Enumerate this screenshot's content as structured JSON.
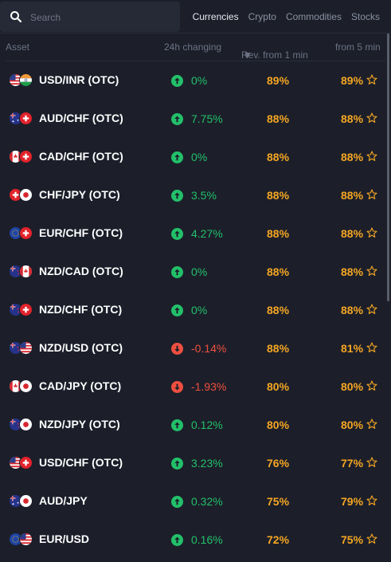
{
  "search": {
    "placeholder": "Search"
  },
  "tabs": [
    {
      "label": "Currencies",
      "active": true
    },
    {
      "label": "Crypto",
      "active": false
    },
    {
      "label": "Commodities",
      "active": false
    },
    {
      "label": "Stocks",
      "active": false
    }
  ],
  "columns": {
    "asset": "Asset",
    "change": "24h changing",
    "rev1": "Rev. from 1 min",
    "rev5": "from 5 min"
  },
  "colors": {
    "up": "#22c06a",
    "down": "#ef4f3f",
    "payout": "#f5a623",
    "background": "#1c1f2a"
  },
  "assets": [
    {
      "name": "USD/INR (OTC)",
      "flags": [
        "us",
        "in"
      ],
      "direction": "up",
      "change": "0%",
      "rev1": "89%",
      "rev5": "89%"
    },
    {
      "name": "AUD/CHF (OTC)",
      "flags": [
        "au",
        "ch"
      ],
      "direction": "up",
      "change": "7.75%",
      "rev1": "88%",
      "rev5": "88%"
    },
    {
      "name": "CAD/CHF (OTC)",
      "flags": [
        "ca",
        "ch"
      ],
      "direction": "up",
      "change": "0%",
      "rev1": "88%",
      "rev5": "88%"
    },
    {
      "name": "CHF/JPY (OTC)",
      "flags": [
        "ch",
        "jp"
      ],
      "direction": "up",
      "change": "3.5%",
      "rev1": "88%",
      "rev5": "88%"
    },
    {
      "name": "EUR/CHF (OTC)",
      "flags": [
        "eu",
        "ch"
      ],
      "direction": "up",
      "change": "4.27%",
      "rev1": "88%",
      "rev5": "88%"
    },
    {
      "name": "NZD/CAD (OTC)",
      "flags": [
        "nz",
        "ca"
      ],
      "direction": "up",
      "change": "0%",
      "rev1": "88%",
      "rev5": "88%"
    },
    {
      "name": "NZD/CHF (OTC)",
      "flags": [
        "nz",
        "ch"
      ],
      "direction": "up",
      "change": "0%",
      "rev1": "88%",
      "rev5": "88%"
    },
    {
      "name": "NZD/USD (OTC)",
      "flags": [
        "nz",
        "us"
      ],
      "direction": "down",
      "change": "-0.14%",
      "rev1": "88%",
      "rev5": "81%"
    },
    {
      "name": "CAD/JPY (OTC)",
      "flags": [
        "ca",
        "jp"
      ],
      "direction": "down",
      "change": "-1.93%",
      "rev1": "80%",
      "rev5": "80%"
    },
    {
      "name": "NZD/JPY (OTC)",
      "flags": [
        "nz",
        "jp"
      ],
      "direction": "up",
      "change": "0.12%",
      "rev1": "80%",
      "rev5": "80%"
    },
    {
      "name": "USD/CHF (OTC)",
      "flags": [
        "us",
        "ch"
      ],
      "direction": "up",
      "change": "3.23%",
      "rev1": "76%",
      "rev5": "77%"
    },
    {
      "name": "AUD/JPY",
      "flags": [
        "au",
        "jp"
      ],
      "direction": "up",
      "change": "0.32%",
      "rev1": "75%",
      "rev5": "79%"
    },
    {
      "name": "EUR/USD",
      "flags": [
        "eu",
        "us"
      ],
      "direction": "up",
      "change": "0.16%",
      "rev1": "72%",
      "rev5": "75%"
    }
  ]
}
